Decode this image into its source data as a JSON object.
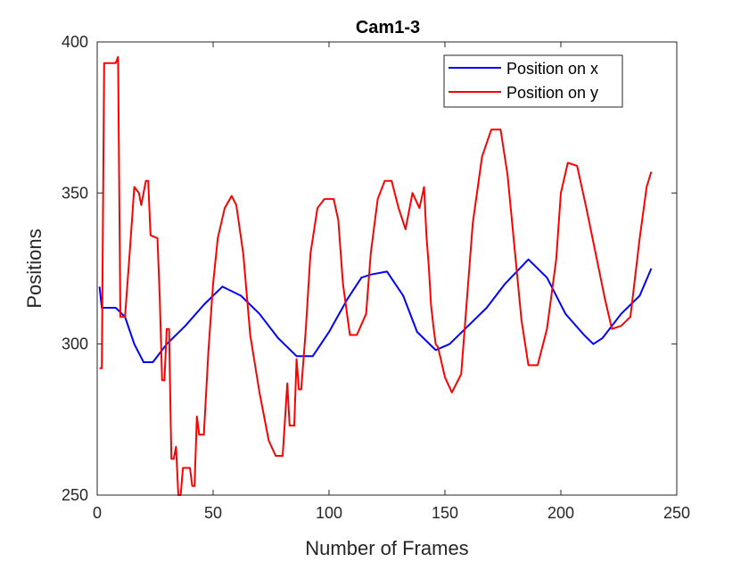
{
  "chart_data": {
    "type": "line",
    "title": "Cam1-3",
    "xlabel": "Number of Frames",
    "ylabel": "Positions",
    "xlim": [
      0,
      250
    ],
    "ylim": [
      250,
      400
    ],
    "xticks": [
      "0",
      "50",
      "100",
      "150",
      "200",
      "250"
    ],
    "yticks": [
      "250",
      "300",
      "350",
      "400"
    ],
    "grid": false,
    "legend_position": "top-right",
    "series": [
      {
        "name": "Position on x",
        "color": "#0000ff",
        "x": [
          1,
          2,
          8,
          12,
          16,
          20,
          24,
          30,
          38,
          46,
          54,
          62,
          70,
          78,
          86,
          93,
          100,
          108,
          114,
          118,
          125,
          132,
          138,
          146,
          152,
          160,
          168,
          176,
          186,
          194,
          202,
          210,
          214,
          218,
          226,
          234,
          239
        ],
        "y": [
          319,
          312,
          312,
          309,
          300,
          294,
          294,
          300,
          306,
          313,
          319,
          316,
          310,
          302,
          296,
          296,
          304,
          315,
          322,
          323,
          324,
          316,
          304,
          298,
          300,
          306,
          312,
          320,
          328,
          322,
          310,
          303,
          300,
          302,
          310,
          316,
          325
        ]
      },
      {
        "name": "Position on y",
        "color": "#ff0000",
        "x": [
          1,
          2,
          3,
          8,
          9,
          10,
          12,
          14,
          16,
          18,
          19,
          21,
          22,
          23,
          26,
          27,
          28,
          29,
          30,
          31,
          32,
          33,
          34,
          35,
          36,
          37,
          38,
          40,
          41,
          42,
          43,
          44,
          46,
          48,
          50,
          52,
          55,
          58,
          60,
          63,
          66,
          70,
          74,
          77,
          80,
          82,
          83,
          84,
          85,
          86,
          87,
          88,
          90,
          92,
          95,
          98,
          102,
          104,
          106,
          109,
          112,
          116,
          118,
          121,
          124,
          127,
          130,
          133,
          136,
          139,
          141,
          142,
          143,
          144,
          145,
          146,
          147,
          150,
          153,
          157,
          159,
          162,
          166,
          170,
          174,
          177,
          180,
          183,
          186,
          190,
          194,
          198,
          200,
          203,
          207,
          211,
          215,
          219,
          222,
          226,
          230,
          234,
          237,
          239
        ],
        "y": [
          292,
          292,
          393,
          393,
          395,
          309,
          309,
          330,
          352,
          350,
          346,
          354,
          354,
          336,
          335,
          315,
          288,
          288,
          305,
          305,
          262,
          262,
          266,
          250,
          250,
          259,
          259,
          259,
          253,
          253,
          276,
          270,
          270,
          298,
          320,
          335,
          345,
          349,
          346,
          330,
          303,
          284,
          268,
          263,
          263,
          287,
          273,
          273,
          273,
          295,
          285,
          285,
          305,
          330,
          345,
          348,
          348,
          341,
          320,
          303,
          303,
          310,
          330,
          348,
          354,
          354,
          345,
          338,
          350,
          345,
          352,
          336,
          326,
          313,
          306,
          300,
          299,
          289,
          284,
          290,
          310,
          340,
          362,
          371,
          371,
          356,
          332,
          308,
          293,
          293,
          305,
          328,
          350,
          360,
          359,
          345,
          330,
          315,
          305,
          306,
          309,
          335,
          352,
          357
        ]
      }
    ]
  }
}
